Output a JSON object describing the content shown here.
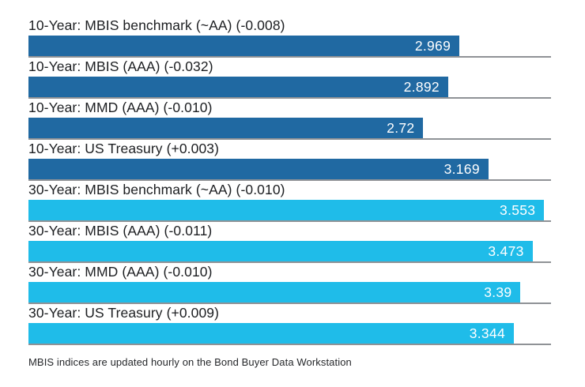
{
  "chart_data": {
    "type": "bar",
    "orientation": "horizontal",
    "title": "",
    "xlabel": "",
    "ylabel": "",
    "xlim": [
      0,
      3.6
    ],
    "grid": false,
    "legend": "none",
    "series_colors": {
      "10-Year": "#2069A2",
      "30-Year": "#1FBCE9"
    },
    "rows": [
      {
        "label": "10-Year: MBIS benchmark (~AA) (-0.008)",
        "series": "10-Year",
        "value": 2.969,
        "display": "2.969"
      },
      {
        "label": "10-Year: MBIS (AAA) (-0.032)",
        "series": "10-Year",
        "value": 2.892,
        "display": "2.892"
      },
      {
        "label": "10-Year: MMD (AAA) (-0.010)",
        "series": "10-Year",
        "value": 2.72,
        "display": "2.72"
      },
      {
        "label": "10-Year: US Treasury (+0.003)",
        "series": "10-Year",
        "value": 3.169,
        "display": "3.169"
      },
      {
        "label": "30-Year: MBIS benchmark (~AA) (-0.010)",
        "series": "30-Year",
        "value": 3.553,
        "display": "3.553"
      },
      {
        "label": "30-Year: MBIS (AAA) (-0.011)",
        "series": "30-Year",
        "value": 3.473,
        "display": "3.473"
      },
      {
        "label": "30-Year: MMD (AAA) (-0.010)",
        "series": "30-Year",
        "value": 3.39,
        "display": "3.39"
      },
      {
        "label": "30-Year: US Treasury (+0.009)",
        "series": "30-Year",
        "value": 3.344,
        "display": "3.344"
      }
    ]
  },
  "footer": {
    "note": "MBIS indices are updated hourly on the Bond Buyer Data Workstation"
  }
}
